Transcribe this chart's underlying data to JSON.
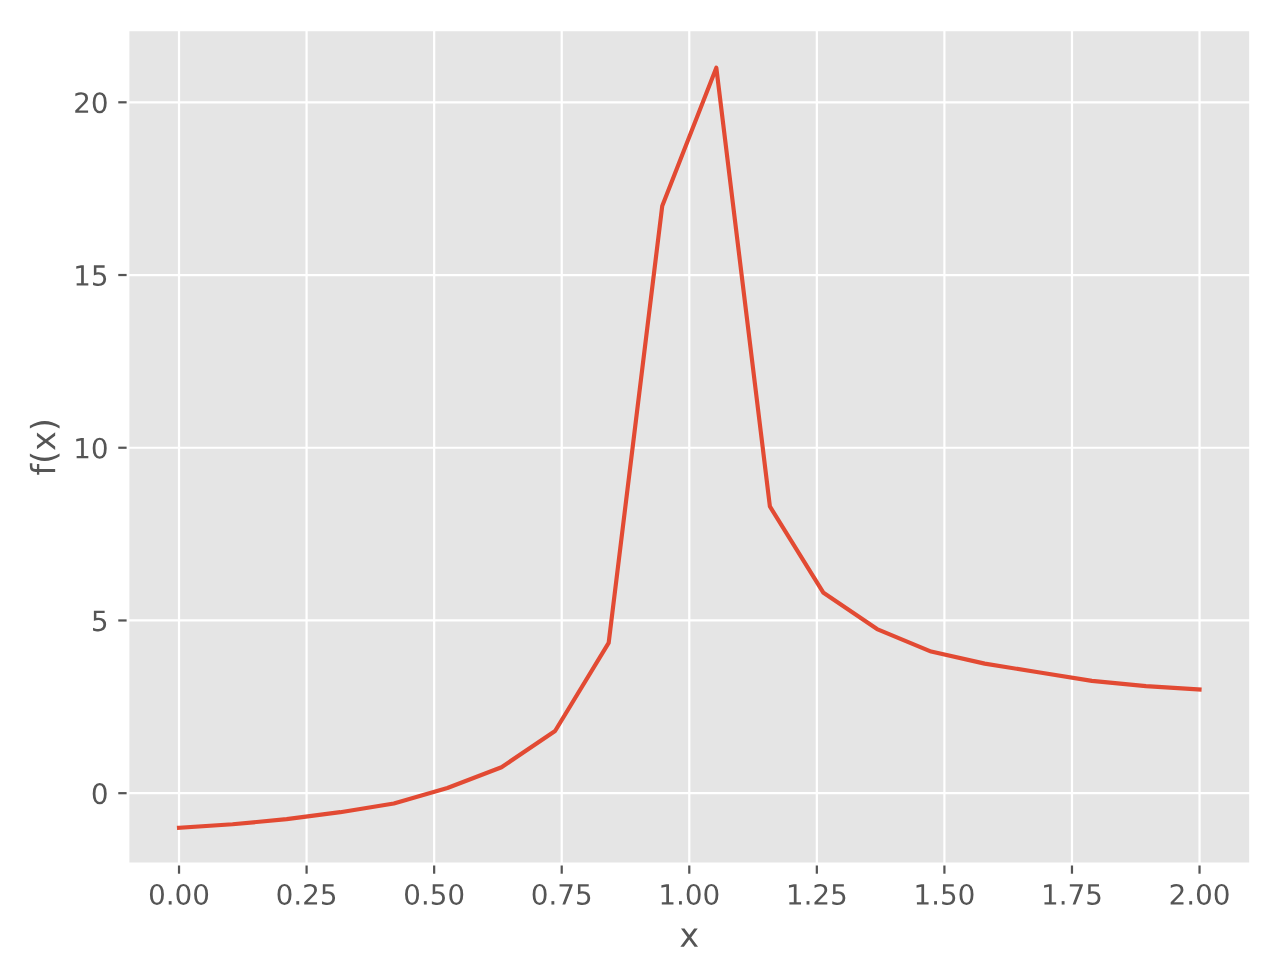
{
  "chart_data": {
    "type": "line",
    "xlabel": "x",
    "ylabel": "f(x)",
    "x": [
      0,
      0.105,
      0.211,
      0.316,
      0.421,
      0.526,
      0.632,
      0.737,
      0.842,
      0.947,
      1.053,
      1.158,
      1.263,
      1.368,
      1.474,
      1.579,
      1.684,
      1.789,
      1.895,
      2.0
    ],
    "series": [
      {
        "color": "#e24a33",
        "values": [
          -1.0,
          -0.9,
          -0.75,
          -0.55,
          -0.3,
          0.15,
          0.75,
          1.8,
          4.35,
          17.0,
          21.0,
          8.3,
          5.8,
          4.75,
          4.1,
          3.75,
          3.5,
          3.25,
          3.1,
          3.0
        ]
      }
    ],
    "xlim": [
      -0.1,
      2.1
    ],
    "ylim": [
      -2.05,
      22.1
    ],
    "xticks": [
      {
        "value": 0,
        "label": "0.00"
      },
      0.25,
      {
        "value": 0.5,
        "label": "0.50"
      },
      0.75,
      {
        "value": 1,
        "label": "1.00"
      },
      1.25,
      {
        "value": 1.5,
        "label": "1.50"
      },
      1.75,
      {
        "value": 2,
        "label": "2.00"
      }
    ],
    "yticks": [
      0,
      5,
      10,
      15,
      20
    ],
    "grid": true
  }
}
